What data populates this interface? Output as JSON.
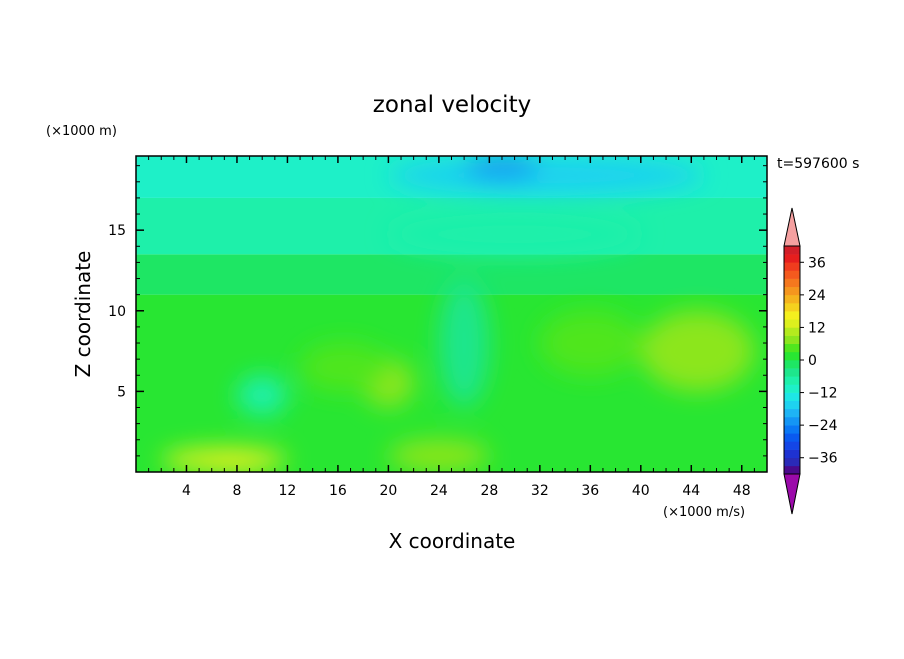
{
  "chart_data": {
    "type": "heatmap",
    "title": "zonal velocity",
    "xlabel": "X coordinate",
    "ylabel": "Z coordinate",
    "x_unit": "(×1000 m/s)",
    "y_unit": "(×1000 m)",
    "time_label": "t=597600 s",
    "xlim": [
      0,
      50
    ],
    "ylim": [
      0,
      19.6
    ],
    "x_ticks": [
      4,
      8,
      12,
      16,
      20,
      24,
      28,
      32,
      36,
      40,
      44,
      48
    ],
    "y_ticks": [
      5,
      10,
      15
    ],
    "colorbar": {
      "levels": [
        -42,
        -39,
        -36,
        -33,
        -30,
        -27,
        -24,
        -21,
        -18,
        -15,
        -12,
        -9,
        -6,
        -3,
        0,
        3,
        6,
        9,
        12,
        15,
        18,
        21,
        24,
        27,
        30,
        33,
        36,
        39,
        42
      ],
      "colors": [
        "#4a0a8c",
        "#2a2ab8",
        "#1e32d2",
        "#1446e6",
        "#0a5af0",
        "#0a78f5",
        "#1496f5",
        "#1eb4f5",
        "#1ed2f0",
        "#1ee6e6",
        "#1ef0c8",
        "#1ef0aa",
        "#1ee68c",
        "#1ee664",
        "#28e632",
        "#50e61e",
        "#8ce61e",
        "#b4eb1e",
        "#dcf01e",
        "#f5f01e",
        "#f5d21e",
        "#f5b41e",
        "#f5961e",
        "#f5781e",
        "#f55a1e",
        "#f03c1e",
        "#e61e1e",
        "#d21e28"
      ],
      "under_color": "#9b0aaa",
      "over_color": "#f5a0a0",
      "tick_labels": [
        "36",
        "24",
        "12",
        "0",
        "−12",
        "−24",
        "−36"
      ]
    },
    "regions": [
      {
        "x": [
          2,
          12
        ],
        "z": [
          0,
          1.5
        ],
        "u": 12
      },
      {
        "x": [
          6,
          10
        ],
        "z": [
          0,
          0.8
        ],
        "u": 15
      },
      {
        "x": [
          20,
          28
        ],
        "z": [
          0,
          2
        ],
        "u": 7
      },
      {
        "x": [
          8,
          12
        ],
        "z": [
          3.5,
          6
        ],
        "u": -9
      },
      {
        "x": [
          18,
          22
        ],
        "z": [
          4,
          7
        ],
        "u": 6
      },
      {
        "x": [
          13,
          20
        ],
        "z": [
          5,
          8
        ],
        "u": 4
      },
      {
        "x": [
          24,
          28
        ],
        "z": [
          4,
          12
        ],
        "u": -6
      },
      {
        "x": [
          40,
          49
        ],
        "z": [
          5,
          10
        ],
        "u": 7
      },
      {
        "x": [
          32,
          40
        ],
        "z": [
          6,
          10
        ],
        "u": 4
      },
      {
        "x": [
          20,
          40
        ],
        "z": [
          13.5,
          16
        ],
        "u": -9
      },
      {
        "x": [
          20,
          45
        ],
        "z": [
          17.2,
          19.6
        ],
        "u": -16
      },
      {
        "x": [
          26,
          32
        ],
        "z": [
          18.2,
          19.6
        ],
        "u": -23
      }
    ]
  }
}
